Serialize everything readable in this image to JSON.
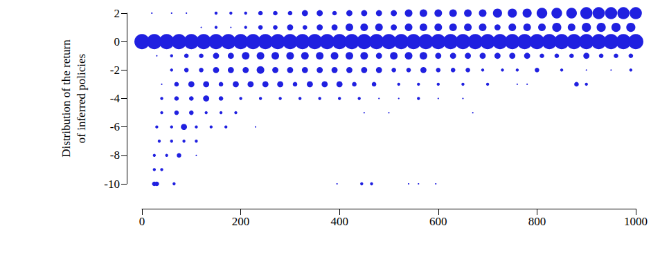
{
  "chart_data": {
    "type": "scatter",
    "y_label": "Distribution of the return\nof inferred policies",
    "xlim": [
      0,
      1000
    ],
    "xticks": [
      0,
      200,
      400,
      600,
      800,
      1000
    ],
    "ylim": [
      -10,
      2
    ],
    "yticks": [
      -10,
      -8,
      -6,
      -4,
      -2,
      0,
      2
    ],
    "grid": false,
    "color": "#2020e0",
    "series": [
      {
        "x": [
          0,
          25,
          50,
          75,
          100,
          125,
          150,
          175,
          200,
          225,
          250,
          275,
          300,
          325,
          350,
          375,
          400,
          425,
          450,
          475,
          500,
          525,
          550,
          575,
          600,
          625,
          650,
          675,
          700,
          725,
          750,
          775,
          800,
          825,
          850,
          875,
          900,
          925,
          950,
          975,
          1000
        ],
        "values": [
          0,
          0,
          0,
          0,
          0,
          0,
          0,
          0,
          0,
          0,
          0,
          0,
          0,
          0,
          0,
          0,
          0,
          0,
          0,
          0,
          0,
          0,
          0,
          0,
          0,
          0,
          0,
          0,
          0,
          0,
          0,
          0,
          0,
          0,
          0,
          0,
          0,
          0,
          0,
          0,
          0
        ],
        "sizes": [
          10,
          10,
          10,
          10,
          10,
          10,
          10,
          10,
          10,
          10,
          10,
          10,
          10,
          10,
          10,
          10,
          10,
          10,
          10,
          10,
          10,
          10,
          10,
          10,
          10,
          10,
          10,
          10,
          10,
          10,
          10,
          10,
          10,
          10,
          10,
          10,
          10,
          10,
          10,
          10,
          10
        ]
      },
      {
        "x": [
          20,
          60,
          90,
          150,
          180,
          210,
          240,
          270,
          300,
          330,
          360,
          390,
          420,
          450,
          480,
          510,
          540,
          570,
          600,
          630,
          660,
          690,
          720,
          750,
          780,
          810,
          840,
          870,
          900,
          925,
          950,
          975,
          1000
        ],
        "values": [
          2,
          2,
          2,
          2,
          2,
          2,
          2,
          2,
          2,
          2,
          2,
          2,
          2,
          2,
          2,
          2,
          2,
          2,
          2,
          2,
          2,
          2,
          2,
          2,
          2,
          2,
          2,
          2,
          2,
          2,
          2,
          2,
          2
        ],
        "sizes": [
          1,
          1,
          1,
          2,
          2,
          2,
          3,
          3,
          3,
          4,
          4,
          3,
          4,
          4,
          4,
          4,
          5,
          5,
          5,
          5,
          5,
          5,
          6,
          6,
          6,
          7,
          7,
          7,
          8,
          8,
          8,
          8,
          8
        ]
      },
      {
        "x": [
          120,
          150,
          180,
          210,
          240,
          270,
          300,
          330,
          360,
          390,
          420,
          450,
          480,
          510,
          540,
          570,
          600,
          630,
          660,
          690,
          720,
          750,
          780,
          810,
          840,
          870,
          900,
          930,
          960,
          990
        ],
        "values": [
          1,
          1,
          1,
          1,
          1,
          1,
          1,
          1,
          1,
          1,
          1,
          1,
          1,
          1,
          1,
          1,
          1,
          1,
          1,
          1,
          1,
          1,
          1,
          1,
          1,
          1,
          1,
          1,
          1,
          1
        ],
        "sizes": [
          1,
          2,
          1,
          2,
          3,
          3,
          4,
          3,
          4,
          4,
          5,
          5,
          5,
          4,
          5,
          5,
          5,
          5,
          5,
          5,
          4,
          5,
          5,
          5,
          6,
          5,
          6,
          6,
          6,
          6
        ]
      },
      {
        "x": [
          30,
          60,
          90,
          120,
          150,
          180,
          210,
          240,
          270,
          300,
          330,
          360,
          390,
          420,
          450,
          480,
          510,
          540,
          570,
          600,
          630,
          660,
          690,
          720,
          750,
          780,
          810,
          840,
          870,
          900,
          930,
          960,
          990
        ],
        "values": [
          -1,
          -1,
          -1,
          -1,
          -1,
          -1,
          -1,
          -1,
          -1,
          -1,
          -1,
          -1,
          -1,
          -1,
          -1,
          -1,
          -1,
          -1,
          -1,
          -1,
          -1,
          -1,
          -1,
          -1,
          -1,
          -1,
          -1,
          -1,
          -1,
          -1,
          -1,
          -1,
          -1
        ],
        "sizes": [
          1,
          2,
          3,
          3,
          4,
          4,
          5,
          5,
          5,
          5,
          5,
          5,
          5,
          5,
          5,
          4,
          5,
          5,
          5,
          4,
          4,
          4,
          4,
          4,
          4,
          4,
          3,
          3,
          3,
          4,
          3,
          3,
          3
        ]
      },
      {
        "x": [
          60,
          90,
          120,
          150,
          180,
          210,
          240,
          270,
          300,
          330,
          360,
          390,
          420,
          450,
          480,
          510,
          540,
          570,
          600,
          630,
          660,
          690,
          730,
          760,
          800,
          850,
          900,
          950,
          990
        ],
        "values": [
          -2,
          -2,
          -2,
          -2,
          -2,
          -2,
          -2,
          -2,
          -2,
          -2,
          -2,
          -2,
          -2,
          -2,
          -2,
          -2,
          -2,
          -2,
          -2,
          -2,
          -2,
          -2,
          -2,
          -2,
          -2,
          -2,
          -2,
          -2,
          -2
        ],
        "sizes": [
          2,
          3,
          3,
          4,
          4,
          4,
          5,
          4,
          4,
          4,
          4,
          4,
          4,
          4,
          4,
          3,
          3,
          4,
          3,
          3,
          3,
          2,
          2,
          2,
          3,
          2,
          1,
          1,
          2
        ]
      },
      {
        "x": [
          40,
          70,
          100,
          130,
          160,
          190,
          220,
          250,
          280,
          310,
          340,
          370,
          400,
          430,
          470,
          520,
          560,
          600,
          650,
          700,
          760,
          780,
          880,
          900
        ],
        "values": [
          -3,
          -3,
          -3,
          -3,
          -3,
          -3,
          -3,
          -3,
          -3,
          -3,
          -3,
          -3,
          -3,
          -3,
          -3,
          -3,
          -3,
          -3,
          -3,
          -3,
          -3,
          -3,
          -3,
          -3
        ],
        "sizes": [
          1,
          3,
          4,
          4,
          3,
          4,
          4,
          4,
          4,
          3,
          4,
          4,
          4,
          3,
          3,
          2,
          2,
          2,
          2,
          2,
          1,
          1,
          3,
          2
        ]
      },
      {
        "x": [
          40,
          70,
          100,
          130,
          160,
          200,
          240,
          280,
          320,
          360,
          400,
          440,
          480,
          520,
          560,
          600,
          650
        ],
        "values": [
          -4,
          -4,
          -4,
          -4,
          -4,
          -4,
          -4,
          -4,
          -4,
          -4,
          -4,
          -4,
          -4,
          -4,
          -4,
          -4,
          -4
        ],
        "sizes": [
          2,
          3,
          3,
          4,
          3,
          2,
          2,
          2,
          2,
          2,
          2,
          2,
          1,
          1,
          2,
          1,
          1
        ]
      },
      {
        "x": [
          40,
          70,
          100,
          130,
          160,
          190,
          450,
          500,
          670
        ],
        "values": [
          -5,
          -5,
          -5,
          -5,
          -5,
          -5,
          -5,
          -5,
          -5
        ],
        "sizes": [
          2,
          3,
          3,
          2,
          2,
          2,
          1,
          1,
          1
        ]
      },
      {
        "x": [
          30,
          60,
          85,
          110,
          140,
          170,
          230
        ],
        "values": [
          -6,
          -6,
          -6,
          -6,
          -6,
          -6,
          -6
        ],
        "sizes": [
          2,
          2,
          4,
          2,
          2,
          2,
          1
        ]
      },
      {
        "x": [
          35,
          60,
          85,
          110
        ],
        "values": [
          -7,
          -7,
          -7,
          -7
        ],
        "sizes": [
          2,
          2,
          2,
          2
        ]
      },
      {
        "x": [
          25,
          50,
          75,
          110
        ],
        "values": [
          -8,
          -8,
          -8,
          -8
        ],
        "sizes": [
          2,
          2,
          3,
          1
        ]
      },
      {
        "x": [
          25,
          40
        ],
        "values": [
          -9,
          -9
        ],
        "sizes": [
          2,
          2
        ]
      },
      {
        "x": [
          25,
          30,
          65,
          395,
          445,
          465,
          540,
          560,
          595
        ],
        "values": [
          -10,
          -10,
          -10,
          -10,
          -10,
          -10,
          -10,
          -10,
          -10
        ],
        "sizes": [
          3,
          3,
          2,
          1,
          2,
          2,
          1,
          1,
          1
        ]
      }
    ]
  }
}
